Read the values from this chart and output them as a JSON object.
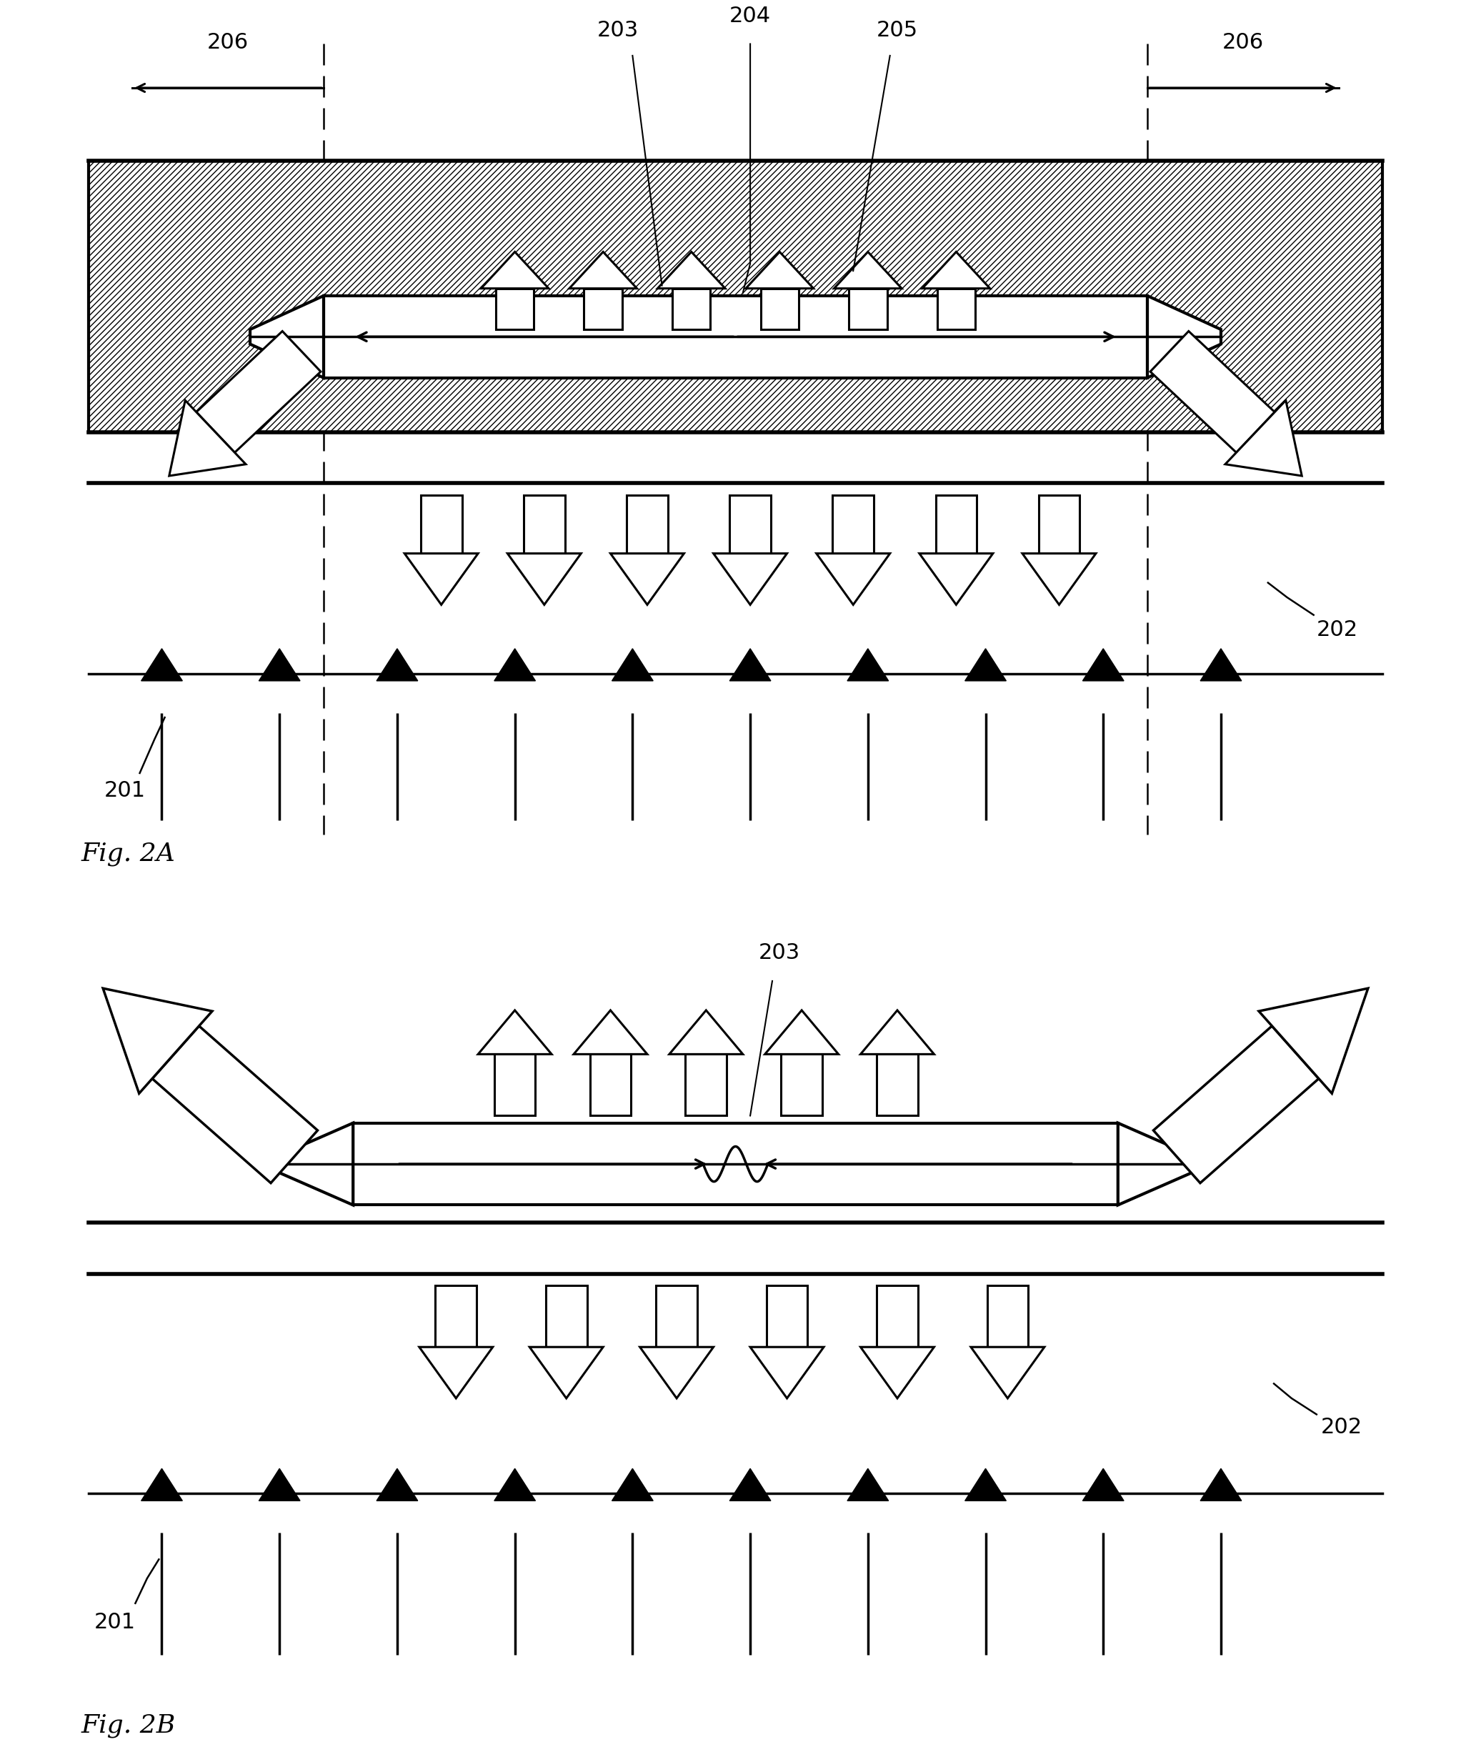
{
  "fig_width": 20.59,
  "fig_height": 24.59,
  "bg_color": "#ffffff",
  "fig2a_label": "Fig. 2A",
  "fig2b_label": "Fig. 2B",
  "label_201": "201",
  "label_202": "202",
  "label_203": "203",
  "label_204": "204",
  "label_205": "205",
  "label_206": "206",
  "font_size_label": 22,
  "font_size_fig": 26
}
